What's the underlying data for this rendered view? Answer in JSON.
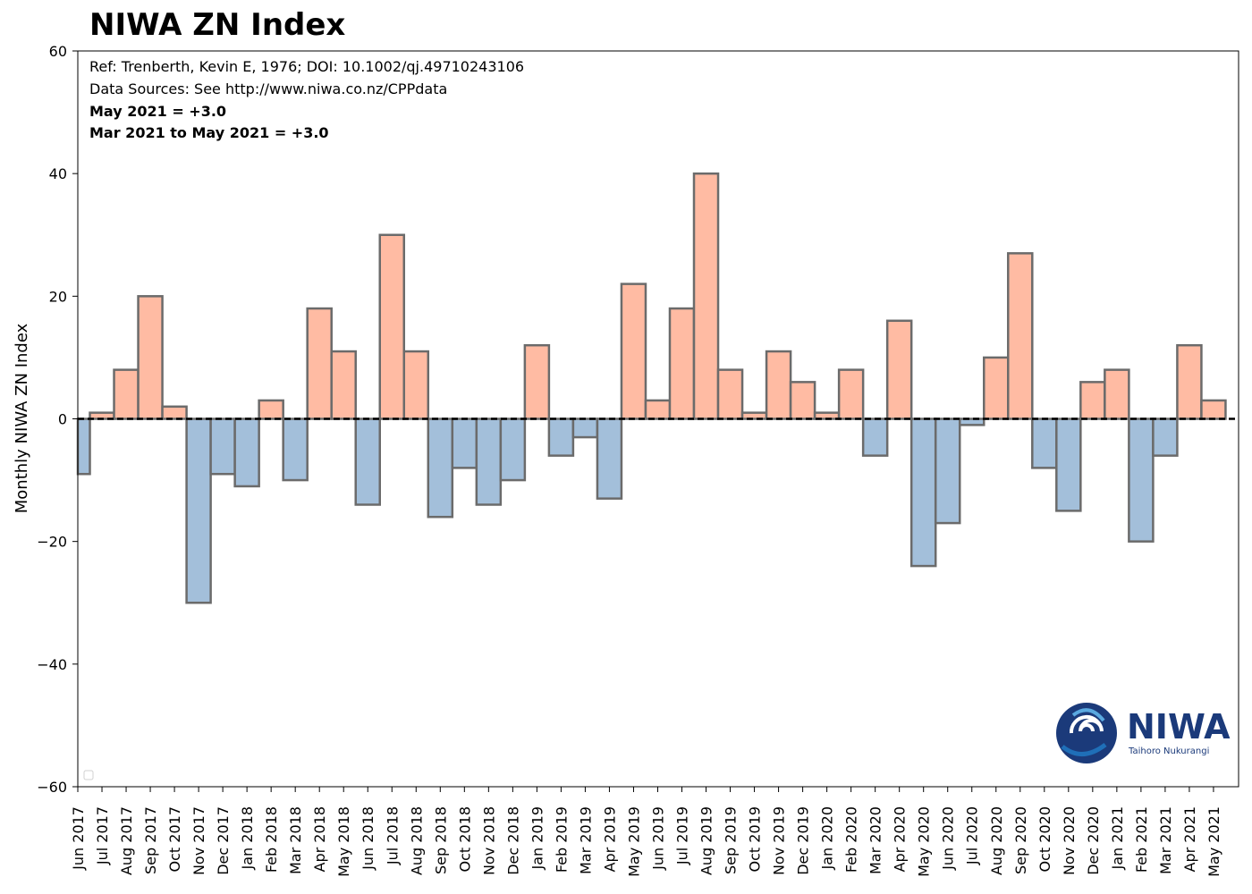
{
  "chart_data": {
    "type": "bar",
    "title": "NIWA ZN Index",
    "ylabel": "Monthly NIWA ZN Index",
    "xlabel": "",
    "ylim": [
      -60,
      60
    ],
    "yticks": [
      -60,
      -40,
      -20,
      0,
      20,
      40,
      60
    ],
    "ytick_labels": [
      "−60",
      "−40",
      "−20",
      "0",
      "20",
      "40",
      "60"
    ],
    "grid": false,
    "zero_line": "dashed",
    "colors": {
      "positive": "#ffbba3",
      "negative": "#a3bfda",
      "edge": "#6b6b6b"
    },
    "annotations": [
      "Ref: Trenberth, Kevin E, 1976; DOI: 10.1002/qj.49710243106",
      "Data Sources: See http://www.niwa.co.nz/CPPdata",
      "May 2021 = +3.0",
      "Mar 2021 to May 2021 = +3.0"
    ],
    "categories": [
      "Jun 2017",
      "Jul 2017",
      "Aug 2017",
      "Sep 2017",
      "Oct 2017",
      "Nov 2017",
      "Dec 2017",
      "Jan 2018",
      "Feb 2018",
      "Mar 2018",
      "Apr 2018",
      "May 2018",
      "Jun 2018",
      "Jul 2018",
      "Aug 2018",
      "Sep 2018",
      "Oct 2018",
      "Nov 2018",
      "Dec 2018",
      "Jan 2019",
      "Feb 2019",
      "Mar 2019",
      "Apr 2019",
      "May 2019",
      "Jun 2019",
      "Jul 2019",
      "Aug 2019",
      "Sep 2019",
      "Oct 2019",
      "Nov 2019",
      "Dec 2019",
      "Jan 2020",
      "Feb 2020",
      "Mar 2020",
      "Apr 2020",
      "May 2020",
      "Jun 2020",
      "Jul 2020",
      "Aug 2020",
      "Sep 2020",
      "Oct 2020",
      "Nov 2020",
      "Dec 2020",
      "Jan 2021",
      "Feb 2021",
      "Mar 2021",
      "Apr 2021",
      "May 2021"
    ],
    "values": [
      -9,
      1,
      8,
      20,
      2,
      -30,
      -9,
      -11,
      3,
      -10,
      18,
      11,
      -14,
      30,
      11,
      -16,
      -8,
      -14,
      -10,
      12,
      -6,
      -3,
      -13,
      22,
      3,
      18,
      40,
      8,
      1,
      11,
      6,
      1,
      8,
      -6,
      16,
      -24,
      -17,
      -1,
      10,
      27,
      -8,
      -15,
      6,
      8,
      -20,
      -6,
      12,
      3
    ]
  },
  "logo": {
    "name": "NIWA",
    "tagline": "Taihoro Nukurangi",
    "colors": {
      "dark": "#1b3a7a",
      "mid": "#1f6fb8",
      "light": "#ffffff"
    }
  }
}
